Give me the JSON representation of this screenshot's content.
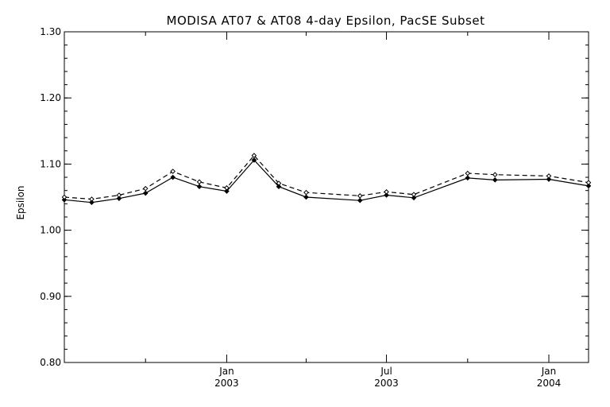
{
  "chart_data": {
    "type": "line",
    "title": "MODISA AT07 & AT08 4-day Epsilon, PacSE Subset",
    "xlabel": "",
    "ylabel": "Epsilon",
    "ylim": [
      0.8,
      1.3
    ],
    "yticks": [
      "0.80",
      "0.90",
      "1.00",
      "1.10",
      "1.20",
      "1.30"
    ],
    "xlim": [
      "2002-07-01",
      "2004-02-15"
    ],
    "x_major_ticks": [
      {
        "date": "2003-01-01",
        "month": "Jan",
        "year": "2003"
      },
      {
        "date": "2003-07-01",
        "month": "Jul",
        "year": "2003"
      },
      {
        "date": "2004-01-01",
        "month": "Jan",
        "year": "2004"
      }
    ],
    "x_minor_ticks": [
      "2002-10-01",
      "2003-04-01",
      "2003-10-01"
    ],
    "grid": false,
    "series": [
      {
        "style": "solid",
        "x": [
          "2002-07-01",
          "2002-08-01",
          "2002-09-01",
          "2002-10-01",
          "2002-11-01",
          "2002-12-01",
          "2003-01-01",
          "2003-02-01",
          "2003-03-01",
          "2003-04-01",
          "2003-06-01",
          "2003-07-01",
          "2003-08-01",
          "2003-10-01",
          "2003-11-01",
          "2004-01-01",
          "2004-02-15"
        ],
        "values": [
          1.046,
          1.042,
          1.048,
          1.056,
          1.08,
          1.066,
          1.059,
          1.106,
          1.066,
          1.05,
          1.045,
          1.053,
          1.049,
          1.079,
          1.076,
          1.077,
          1.067
        ]
      },
      {
        "style": "dashed",
        "x": [
          "2002-07-01",
          "2002-08-01",
          "2002-09-01",
          "2002-10-01",
          "2002-11-01",
          "2002-12-01",
          "2003-01-01",
          "2003-02-01",
          "2003-03-01",
          "2003-04-01",
          "2003-06-01",
          "2003-07-01",
          "2003-08-01",
          "2003-10-01",
          "2003-11-01",
          "2004-01-01",
          "2004-02-15"
        ],
        "values": [
          1.05,
          1.047,
          1.053,
          1.063,
          1.089,
          1.073,
          1.064,
          1.113,
          1.071,
          1.057,
          1.052,
          1.058,
          1.054,
          1.086,
          1.084,
          1.082,
          1.072
        ]
      }
    ]
  }
}
